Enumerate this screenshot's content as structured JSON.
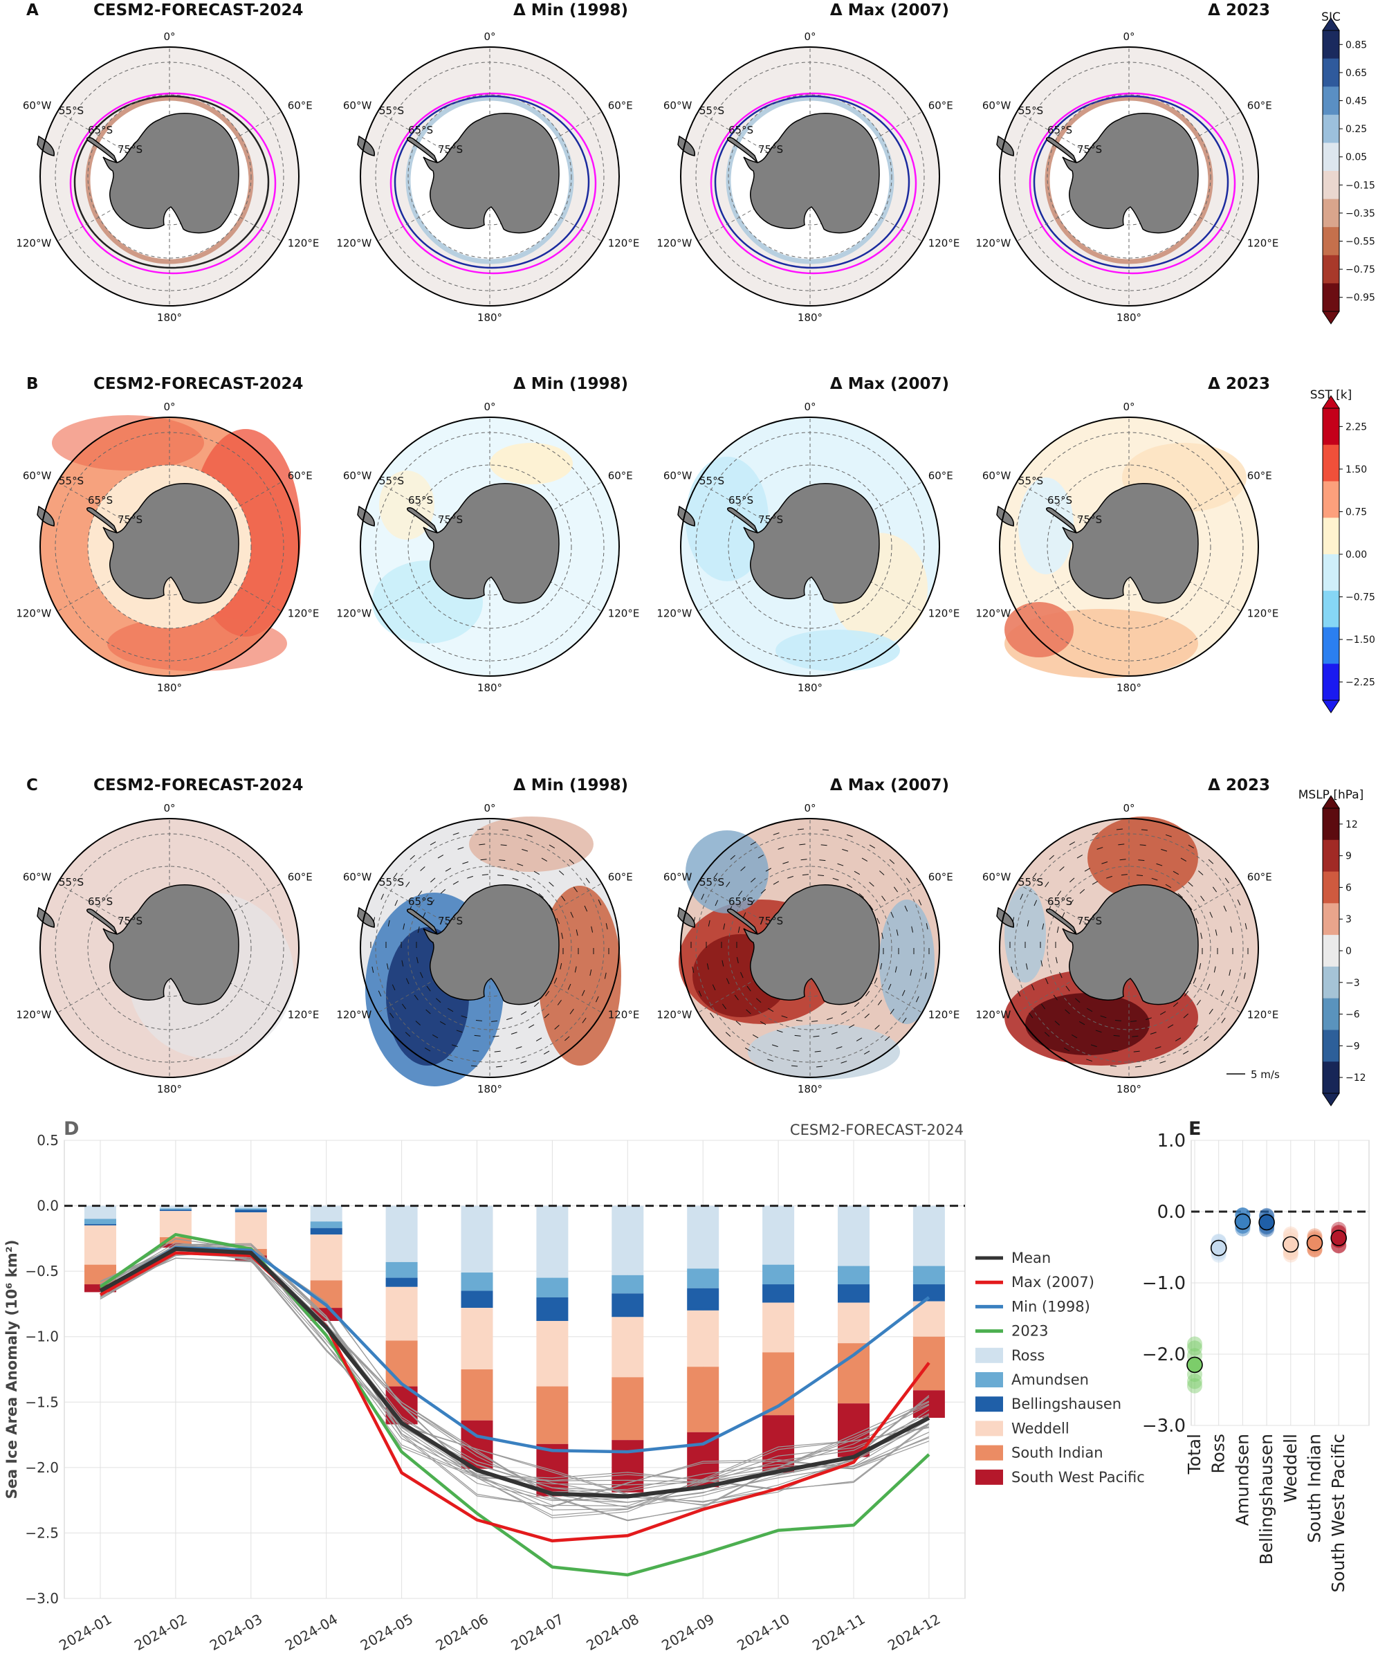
{
  "figure": {
    "panels": {
      "A": {
        "letter": "A",
        "titles": [
          "CESM2-FORECAST-2024",
          "Δ Min (1998)",
          "Δ Max (2007)",
          "Δ 2023"
        ],
        "colorbar": {
          "label": "SIC",
          "ticks": [
            "0.85",
            "0.65",
            "0.45",
            "0.25",
            "0.05",
            "−0.15",
            "−0.35",
            "−0.55",
            "−0.75",
            "−0.95"
          ],
          "colors": [
            "#1a2a5e",
            "#2f5a9c",
            "#5a8fc3",
            "#9cc0dc",
            "#dde6ee",
            "#ead7cf",
            "#d9a58c",
            "#c5704c",
            "#a8392a",
            "#6b0d12"
          ]
        }
      },
      "B": {
        "letter": "B",
        "titles": [
          "CESM2-FORECAST-2024",
          "Δ Min (1998)",
          "Δ Max (2007)",
          "Δ 2023"
        ],
        "colorbar": {
          "label": "SST [k]",
          "ticks": [
            "2.25",
            "1.50",
            "0.75",
            "0.00",
            "−0.75",
            "−1.50",
            "−2.25"
          ],
          "colors": [
            "#c4001a",
            "#f0503a",
            "#fca07c",
            "#fff3cf",
            "#cfeffa",
            "#86d6f5",
            "#2b7ff0",
            "#1a1af0"
          ]
        }
      },
      "C": {
        "letter": "C",
        "titles": [
          "CESM2-FORECAST-2024",
          "Δ Min (1998)",
          "Δ Max (2007)",
          "Δ 2023"
        ],
        "colorbar": {
          "label": "MSLP [hPa]",
          "ticks": [
            "12",
            "9",
            "6",
            "3",
            "0",
            "−3",
            "−6",
            "−9",
            "−12"
          ],
          "colors": [
            "#5c0b0f",
            "#a12a25",
            "#cf5a3f",
            "#e9a58c",
            "#eaeaea",
            "#a5c3d6",
            "#5a93bd",
            "#2d5f99",
            "#172657"
          ]
        },
        "vector_key": "5 m/s"
      }
    },
    "map_labels": {
      "meridians": [
        "0°",
        "60°E",
        "120°E",
        "180°",
        "120°W",
        "60°W"
      ],
      "parallels": [
        "55°S",
        "65°S",
        "75°S"
      ]
    }
  },
  "chart_data": [
    {
      "type": "bar",
      "panel": "D",
      "title": "CESM2-FORECAST-2024",
      "ylabel": "Sea Ice Area Anomaly (10⁶ km²)",
      "xlabel": "",
      "ylim": [
        -3.0,
        0.5
      ],
      "yticks": [
        "0.5",
        "0.0",
        "−0.5",
        "−1.0",
        "−1.5",
        "−2.0",
        "−2.5",
        "−3.0"
      ],
      "categories": [
        "2024-01",
        "2024-02",
        "2024-03",
        "2024-04",
        "2024-05",
        "2024-06",
        "2024-07",
        "2024-08",
        "2024-09",
        "2024-10",
        "2024-11",
        "2024-12"
      ],
      "stacked_series": [
        {
          "name": "Ross",
          "color": "#d0e1ee",
          "values": [
            -0.1,
            -0.02,
            -0.02,
            -0.12,
            -0.43,
            -0.51,
            -0.55,
            -0.53,
            -0.48,
            -0.45,
            -0.46,
            -0.46
          ]
        },
        {
          "name": "Amundsen",
          "color": "#6aabd3",
          "values": [
            -0.04,
            -0.01,
            -0.01,
            -0.05,
            -0.12,
            -0.14,
            -0.15,
            -0.14,
            -0.15,
            -0.15,
            -0.14,
            -0.14
          ]
        },
        {
          "name": "Bellingshausen",
          "color": "#1f5fa8",
          "values": [
            -0.01,
            -0.01,
            -0.02,
            -0.05,
            -0.07,
            -0.13,
            -0.18,
            -0.18,
            -0.17,
            -0.14,
            -0.14,
            -0.13
          ]
        },
        {
          "name": "Weddell",
          "color": "#fad7c4",
          "values": [
            -0.3,
            -0.2,
            -0.28,
            -0.35,
            -0.41,
            -0.47,
            -0.5,
            -0.46,
            -0.43,
            -0.38,
            -0.31,
            -0.27
          ]
        },
        {
          "name": "South Indian",
          "color": "#eb8c64",
          "values": [
            -0.15,
            -0.05,
            -0.05,
            -0.21,
            -0.35,
            -0.39,
            -0.44,
            -0.48,
            -0.5,
            -0.48,
            -0.46,
            -0.41
          ]
        },
        {
          "name": "South West Pacific",
          "color": "#b5182b",
          "values": [
            -0.06,
            -0.03,
            -0.04,
            -0.1,
            -0.29,
            -0.37,
            -0.4,
            -0.4,
            -0.42,
            -0.44,
            -0.41,
            -0.21
          ]
        }
      ],
      "line_series": [
        {
          "name": "Mean",
          "color": "#333333",
          "values": [
            -0.65,
            -0.33,
            -0.36,
            -0.93,
            -1.66,
            -2.02,
            -2.2,
            -2.22,
            -2.15,
            -2.03,
            -1.92,
            -1.62
          ]
        },
        {
          "name": "Max (2007)",
          "color": "#e31a1c",
          "values": [
            -0.68,
            -0.36,
            -0.38,
            -0.92,
            -2.04,
            -2.4,
            -2.56,
            -2.52,
            -2.32,
            -2.16,
            -1.96,
            -1.2
          ]
        },
        {
          "name": "Min (1998)",
          "color": "#3a80c0",
          "values": [
            -0.65,
            -0.32,
            -0.34,
            -0.76,
            -1.36,
            -1.76,
            -1.87,
            -1.88,
            -1.82,
            -1.53,
            -1.14,
            -0.7
          ]
        },
        {
          "name": "2023",
          "color": "#4caf50",
          "values": [
            -0.62,
            -0.22,
            -0.33,
            -0.99,
            -1.88,
            -2.35,
            -2.76,
            -2.82,
            -2.66,
            -2.48,
            -2.44,
            -1.9
          ]
        }
      ],
      "legend_entries": [
        "Mean",
        "Max (2007)",
        "Min (1998)",
        "2023",
        "Ross",
        "Amundsen",
        "Bellingshausen",
        "Weddell",
        "South Indian",
        "South West Pacific"
      ],
      "legend": "right"
    },
    {
      "type": "scatter",
      "panel": "E",
      "ylim": [
        -3.0,
        1.0
      ],
      "yticks": [
        "1.0",
        "0.0",
        "−1.0",
        "−2.0",
        "−3.0"
      ],
      "categories": [
        "Total",
        "Ross",
        "Amundsen",
        "Bellingshausen",
        "Weddell",
        "South Indian",
        "South West Pacific"
      ],
      "colors": [
        "#7ccd6a",
        "#c6dbef",
        "#3a80c0",
        "#1f5fa8",
        "#fbd3bd",
        "#eb8c64",
        "#b5182b"
      ],
      "means": [
        -2.15,
        -0.51,
        -0.14,
        -0.15,
        -0.46,
        -0.44,
        -0.37
      ],
      "spread": [
        0.3,
        0.1,
        0.1,
        0.1,
        0.15,
        0.1,
        0.12
      ]
    }
  ]
}
